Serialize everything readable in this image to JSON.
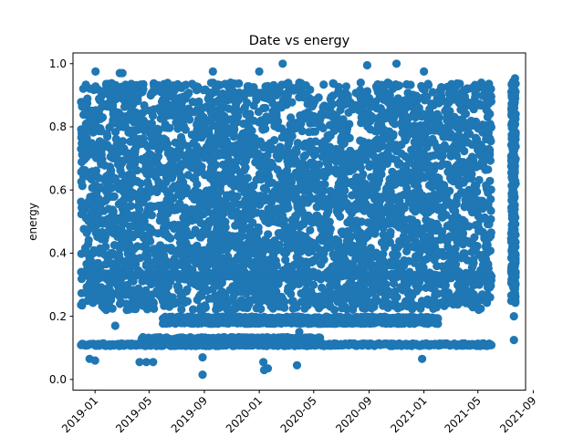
{
  "chart_data": {
    "type": "scatter",
    "title": "Date vs energy",
    "xlabel": "",
    "ylabel": "energy",
    "xlim": [
      "2018-11-13",
      "2021-08-15"
    ],
    "ylim": [
      -0.034,
      1.034
    ],
    "x_ticks": [
      "2019-01",
      "2019-05",
      "2019-09",
      "2020-01",
      "2020-05",
      "2020-09",
      "2021-01",
      "2021-05",
      "2021-09"
    ],
    "y_ticks": [
      "0.0",
      "0.2",
      "0.4",
      "0.6",
      "0.8",
      "1.0"
    ],
    "grid": false,
    "marker_color": "#1f77b4",
    "dense_band": {
      "x_range": [
        "2018-12-01",
        "2021-05-31"
      ],
      "energy_range": [
        0.22,
        0.94
      ]
    },
    "late_cluster": {
      "x_range": [
        "2021-07-14",
        "2021-07-24"
      ],
      "energy_range": [
        0.24,
        0.96
      ]
    },
    "horizontal_bands": [
      {
        "energy": 0.11,
        "x_range": [
          "2018-12-01",
          "2021-05-31"
        ]
      },
      {
        "energy": 0.13,
        "x_range": [
          "2019-04-15",
          "2020-05-15"
        ]
      },
      {
        "energy": 0.18,
        "x_range": [
          "2019-06-01",
          "2021-02-01"
        ]
      },
      {
        "energy": 0.195,
        "x_range": [
          "2019-06-01",
          "2021-02-01"
        ]
      },
      {
        "energy": 0.33,
        "x_range": [
          "2019-02-01",
          "2021-05-31"
        ]
      }
    ],
    "outliers": [
      {
        "x": "2018-12-20",
        "y": 0.065
      },
      {
        "x": "2019-01-01",
        "y": 0.06
      },
      {
        "x": "2019-01-02",
        "y": 0.975
      },
      {
        "x": "2019-02-15",
        "y": 0.17
      },
      {
        "x": "2019-02-25",
        "y": 0.97
      },
      {
        "x": "2019-03-03",
        "y": 0.97
      },
      {
        "x": "2019-04-10",
        "y": 0.055
      },
      {
        "x": "2019-04-25",
        "y": 0.055
      },
      {
        "x": "2019-05-10",
        "y": 0.055
      },
      {
        "x": "2019-08-28",
        "y": 0.07
      },
      {
        "x": "2019-08-28",
        "y": 0.015
      },
      {
        "x": "2019-09-20",
        "y": 0.975
      },
      {
        "x": "2020-01-01",
        "y": 0.975
      },
      {
        "x": "2020-01-10",
        "y": 0.055
      },
      {
        "x": "2020-01-12",
        "y": 0.03
      },
      {
        "x": "2020-01-20",
        "y": 0.035
      },
      {
        "x": "2020-02-22",
        "y": 1.0
      },
      {
        "x": "2020-03-25",
        "y": 0.045
      },
      {
        "x": "2020-03-30",
        "y": 0.15
      },
      {
        "x": "2020-08-28",
        "y": 0.995
      },
      {
        "x": "2020-11-01",
        "y": 1.0
      },
      {
        "x": "2020-12-28",
        "y": 0.065
      },
      {
        "x": "2021-01-01",
        "y": 0.975
      },
      {
        "x": "2021-07-20",
        "y": 0.125
      },
      {
        "x": "2021-07-20",
        "y": 0.2
      }
    ]
  }
}
